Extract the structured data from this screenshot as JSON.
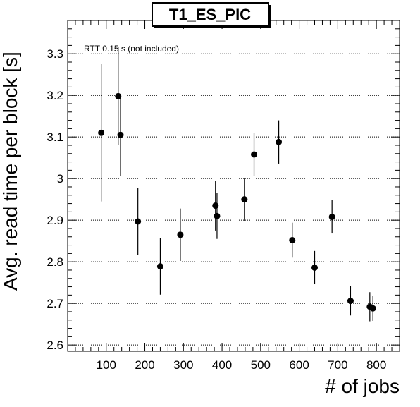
{
  "chart_data": {
    "type": "scatter",
    "title": "T1_ES_PIC",
    "xlabel": "# of jobs",
    "ylabel": "Avg. read time per block [s]",
    "annotation": "RTT 0.15 s (not included)",
    "xlim": [
      0,
      860
    ],
    "ylim": [
      2.585,
      3.38
    ],
    "x_ticks": [
      100,
      200,
      300,
      400,
      500,
      600,
      700,
      800
    ],
    "y_ticks": [
      2.6,
      2.7,
      2.8,
      2.9,
      3,
      3.1,
      3.2,
      3.3
    ],
    "grid": "horizontal-dotted",
    "series": [
      {
        "x": [
          87,
          131,
          137,
          182,
          240,
          292,
          383,
          387,
          458,
          483,
          547,
          582,
          640,
          685,
          733,
          783,
          791
        ],
        "y": [
          3.11,
          3.198,
          3.105,
          2.897,
          2.789,
          2.865,
          2.935,
          2.91,
          2.95,
          3.058,
          3.088,
          2.852,
          2.786,
          2.908,
          2.706,
          2.692,
          2.688
        ],
        "y_err": [
          0.165,
          0.118,
          0.098,
          0.08,
          0.068,
          0.063,
          0.06,
          0.055,
          0.052,
          0.052,
          0.052,
          0.042,
          0.04,
          0.04,
          0.035,
          0.035,
          0.03
        ]
      }
    ]
  }
}
